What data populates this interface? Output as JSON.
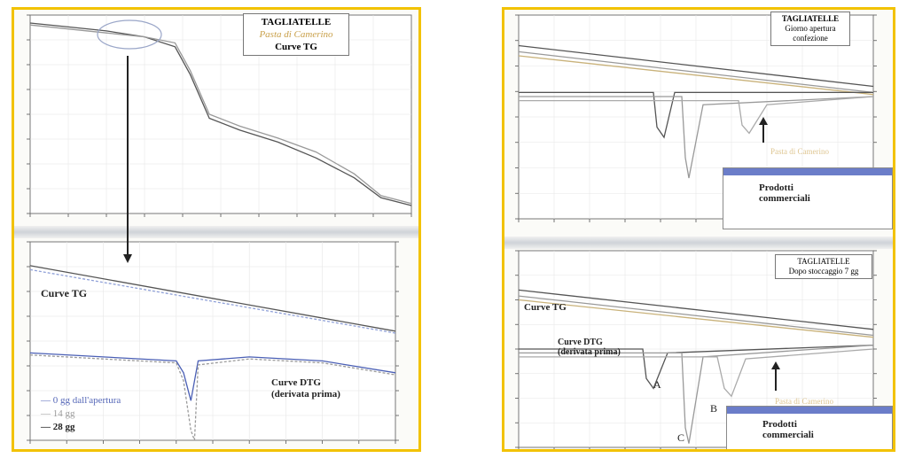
{
  "chart_data": [
    {
      "panel": "left-top",
      "type": "line",
      "title_lines": [
        "TAGLIATELLE",
        "Pasta di Camerino",
        "Curve TG"
      ],
      "series": [
        {
          "color": "#555555",
          "x": [
            0,
            10,
            20,
            30,
            38,
            42,
            47,
            55,
            65,
            75,
            85,
            92,
            100
          ],
          "y": [
            96,
            94,
            92,
            89,
            84,
            70,
            48,
            42,
            36,
            28,
            18,
            8,
            4
          ]
        },
        {
          "color": "#999999",
          "x": [
            0,
            10,
            20,
            30,
            38,
            42,
            47,
            55,
            65,
            75,
            85,
            92,
            100
          ],
          "y": [
            95,
            93,
            91,
            89,
            86,
            72,
            50,
            44,
            38,
            31,
            20,
            9,
            5
          ]
        }
      ],
      "xlim": [
        0,
        100
      ],
      "ylim": [
        0,
        100
      ]
    },
    {
      "panel": "left-bottom",
      "type": "line",
      "annotations": [
        "Curve TG",
        "Curve DTG",
        "(derivata prima)"
      ],
      "legend": [
        "0 gg dall'apertura",
        "14 gg",
        "28 gg"
      ],
      "tg_series": [
        {
          "color": "#555555",
          "x": [
            0,
            100
          ],
          "y": [
            88,
            55
          ]
        },
        {
          "color": "#8fa0d8",
          "x": [
            0,
            100
          ],
          "y": [
            86,
            54
          ]
        }
      ],
      "dtg_series": [
        {
          "color": "#4a5fb5",
          "x": [
            0,
            20,
            40,
            42,
            44,
            46,
            60,
            80,
            100
          ],
          "y": [
            44,
            42,
            40,
            34,
            20,
            40,
            42,
            40,
            34
          ]
        },
        {
          "color": "#9a9a9a",
          "x": [
            0,
            20,
            40,
            42,
            44,
            45,
            46,
            60,
            80,
            100
          ],
          "y": [
            43,
            41,
            39,
            30,
            5,
            0,
            38,
            41,
            39,
            33
          ]
        }
      ],
      "xlim": [
        0,
        100
      ],
      "ylim": [
        0,
        100
      ]
    },
    {
      "panel": "right-top",
      "type": "line",
      "title_lines": [
        "TAGLIATELLE",
        "Giorno apertura",
        "confezione"
      ],
      "annotations": [
        "Pasta di Camerino"
      ],
      "legend": [
        "Prodotti",
        "commerciali"
      ],
      "tg_series": [
        {
          "color": "#555555",
          "x": [
            0,
            100
          ],
          "y": [
            85,
            65
          ]
        },
        {
          "color": "#999999",
          "x": [
            0,
            100
          ],
          "y": [
            82,
            62
          ]
        },
        {
          "color": "#c9b27a",
          "x": [
            0,
            100
          ],
          "y": [
            80,
            61
          ]
        }
      ],
      "dtg_series": [
        {
          "color": "#555555",
          "x": [
            0,
            38,
            39,
            41,
            44,
            100
          ],
          "y": [
            62,
            62,
            45,
            40,
            62,
            62
          ]
        },
        {
          "color": "#999999",
          "x": [
            0,
            46,
            47,
            48,
            52,
            100
          ],
          "y": [
            60,
            60,
            30,
            20,
            56,
            60
          ]
        },
        {
          "color": "#aaaaaa",
          "x": [
            0,
            62,
            63,
            65,
            70,
            100
          ],
          "y": [
            58,
            58,
            46,
            42,
            56,
            60
          ]
        }
      ],
      "xlim": [
        0,
        100
      ],
      "ylim": [
        0,
        100
      ]
    },
    {
      "panel": "right-bottom",
      "type": "line",
      "title_lines": [
        "TAGLIATELLE",
        "Dopo stoccaggio 7 gg"
      ],
      "annotations": [
        "Curve TG",
        "Curve DTG",
        "(derivata prima)",
        "A",
        "B",
        "C",
        "Pasta di Camerino"
      ],
      "legend": [
        "Prodotti",
        "commerciali"
      ],
      "tg_series": [
        {
          "color": "#555555",
          "x": [
            0,
            100
          ],
          "y": [
            80,
            60
          ]
        },
        {
          "color": "#999999",
          "x": [
            0,
            100
          ],
          "y": [
            77,
            57
          ]
        },
        {
          "color": "#c9b27a",
          "x": [
            0,
            100
          ],
          "y": [
            75,
            56
          ]
        }
      ],
      "dtg_series": [
        {
          "color": "#555555",
          "x": [
            0,
            35,
            36,
            38,
            42,
            100
          ],
          "y": [
            50,
            50,
            35,
            30,
            48,
            52
          ]
        },
        {
          "color": "#999999",
          "x": [
            0,
            46,
            47,
            48,
            52,
            100
          ],
          "y": [
            48,
            48,
            10,
            2,
            46,
            52
          ]
        },
        {
          "color": "#aaaaaa",
          "x": [
            0,
            56,
            58,
            60,
            64,
            100
          ],
          "y": [
            46,
            46,
            30,
            26,
            45,
            50
          ]
        }
      ],
      "xlim": [
        0,
        100
      ],
      "ylim": [
        0,
        100
      ]
    }
  ],
  "left": {
    "top_title": {
      "line1": "TAGLIATELLE",
      "line2": "Pasta di Camerino",
      "line3": "Curve TG"
    },
    "tg_label": "Curve TG",
    "dtg_label": {
      "line1": "Curve DTG",
      "line2": "(derivata prima)"
    },
    "legend": {
      "item1": "0 gg dall'apertura",
      "item2": "14 gg",
      "item3": "28 gg"
    }
  },
  "right": {
    "top_title": {
      "line1": "TAGLIATELLE",
      "line2": "Giorno apertura",
      "line3": "confezione"
    },
    "top_pasta": "Pasta di Camerino",
    "legend_top": {
      "line1": "Prodotti",
      "line2": "commerciali"
    },
    "bottom_title": {
      "line1": "TAGLIATELLE",
      "line2": "Dopo stoccaggio 7 gg"
    },
    "tg_label": "Curve TG",
    "dtg_label": {
      "line1": "Curve DTG",
      "line2": "(derivata prima)"
    },
    "peak_a": "A",
    "peak_b": "B",
    "peak_c": "C",
    "bottom_pasta": "Pasta di Camerino",
    "legend_bottom": {
      "line1": "Prodotti",
      "line2": "commerciali"
    }
  },
  "colors": {
    "frame": "#f2c200",
    "legend_bar": "#6b7dc9",
    "pasta_label": "#c9a04a"
  }
}
